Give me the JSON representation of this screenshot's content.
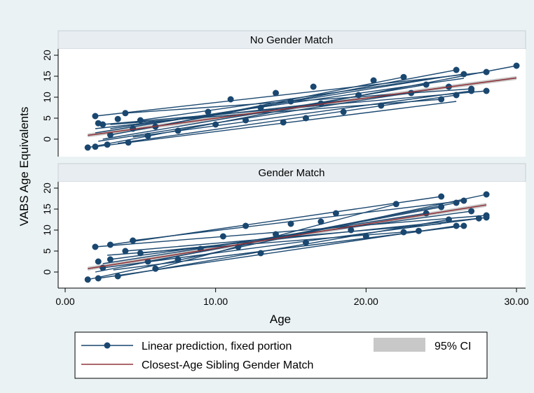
{
  "chart_data": {
    "type": "line",
    "xlabel": "Age",
    "ylabel": "VABS Age Equivalents",
    "xlim": [
      0,
      30
    ],
    "ylim": [
      -2,
      21
    ],
    "xticks": [
      "0.00",
      "10.00",
      "20.00",
      "30.00"
    ],
    "yticks": [
      "0",
      "5",
      "10",
      "15",
      "20"
    ],
    "grid": false,
    "legend_position": "bottom",
    "colors": {
      "prediction": "#1a476f",
      "match_line": "#90353b",
      "ci_band": "#c8c8c8",
      "panel_header": "#e8edf1",
      "plot_background": "#ffffff",
      "outer_background": "#eaf2f3"
    },
    "legend": {
      "prediction_label": "Linear prediction, fixed portion",
      "match_label": "Closest-Age Sibling Gender Match",
      "ci_label": "95% CI"
    },
    "panels": [
      {
        "title": "No Gender Match",
        "fit": {
          "x": [
            1.5,
            30
          ],
          "y": [
            0.9,
            14.6
          ]
        },
        "ci_halfwidth": 0.45,
        "prediction_lines": [
          {
            "x": [
              1.5,
              30.0
            ],
            "y": [
              -2.0,
              17.5
            ]
          },
          {
            "x": [
              2.0,
              28.0
            ],
            "y": [
              5.5,
              16.0
            ]
          },
          {
            "x": [
              2.0,
              26.0
            ],
            "y": [
              -1.8,
              9.0
            ]
          },
          {
            "x": [
              2.5,
              28.0
            ],
            "y": [
              3.5,
              11.5
            ]
          },
          {
            "x": [
              3.0,
              26.0
            ],
            "y": [
              1.0,
              16.5
            ]
          },
          {
            "x": [
              4.0,
              27.0
            ],
            "y": [
              6.2,
              12.0
            ]
          },
          {
            "x": [
              2.2,
              25.5
            ],
            "y": [
              -0.5,
              12.5
            ]
          },
          {
            "x": [
              3.0,
              26.5
            ],
            "y": [
              2.5,
              14.5
            ]
          },
          {
            "x": [
              4.5,
              27.0
            ],
            "y": [
              0.5,
              11.5
            ]
          },
          {
            "x": [
              2.0,
              25.5
            ],
            "y": [
              1.5,
              15.0
            ]
          },
          {
            "x": [
              3.5,
              26.0
            ],
            "y": [
              -1.0,
              10.5
            ]
          },
          {
            "x": [
              5.0,
              26.5
            ],
            "y": [
              4.5,
              15.5
            ]
          },
          {
            "x": [
              2.5,
              24.0
            ],
            "y": [
              0.0,
              13.0
            ]
          },
          {
            "x": [
              6.0,
              22.5
            ],
            "y": [
              3.0,
              14.8
            ]
          },
          {
            "x": [
              3.0,
              25.0
            ],
            "y": [
              3.5,
              9.5
            ]
          },
          {
            "x": [
              2.0,
              23.0
            ],
            "y": [
              2.5,
              11.0
            ]
          }
        ],
        "points": [
          [
            1.5,
            -2.0
          ],
          [
            2.0,
            5.5
          ],
          [
            2.2,
            3.8
          ],
          [
            2.0,
            -1.8
          ],
          [
            2.5,
            3.5
          ],
          [
            3.0,
            1.0
          ],
          [
            2.8,
            -1.3
          ],
          [
            3.5,
            4.8
          ],
          [
            4.0,
            6.2
          ],
          [
            4.2,
            -0.8
          ],
          [
            4.5,
            2.5
          ],
          [
            5.0,
            4.5
          ],
          [
            5.5,
            0.8
          ],
          [
            6.0,
            3.0
          ],
          [
            7.5,
            2.0
          ],
          [
            9.5,
            6.5
          ],
          [
            10.0,
            3.5
          ],
          [
            11.0,
            9.5
          ],
          [
            12.0,
            4.5
          ],
          [
            13.0,
            7.5
          ],
          [
            14.0,
            11.0
          ],
          [
            14.5,
            4.0
          ],
          [
            15.0,
            9.0
          ],
          [
            16.0,
            5.0
          ],
          [
            16.5,
            12.5
          ],
          [
            17.0,
            8.5
          ],
          [
            18.5,
            6.5
          ],
          [
            19.5,
            10.5
          ],
          [
            20.5,
            14.0
          ],
          [
            21.0,
            8.0
          ],
          [
            22.5,
            14.8
          ],
          [
            23.0,
            11.0
          ],
          [
            24.0,
            13.0
          ],
          [
            25.0,
            9.5
          ],
          [
            25.5,
            12.5
          ],
          [
            26.0,
            16.5
          ],
          [
            26.0,
            10.5
          ],
          [
            26.5,
            15.5
          ],
          [
            27.0,
            11.5
          ],
          [
            27.0,
            12.0
          ],
          [
            28.0,
            16.0
          ],
          [
            28.0,
            11.5
          ],
          [
            30.0,
            17.5
          ]
        ]
      },
      {
        "title": "Gender Match",
        "fit": {
          "x": [
            1.5,
            28
          ],
          "y": [
            0.8,
            16.0
          ]
        },
        "ci_halfwidth": 0.45,
        "prediction_lines": [
          {
            "x": [
              1.5,
              28.0
            ],
            "y": [
              -1.8,
              18.5
            ]
          },
          {
            "x": [
              2.0,
              28.0
            ],
            "y": [
              6.0,
              13.5
            ]
          },
          {
            "x": [
              2.2,
              26.0
            ],
            "y": [
              -1.5,
              11.0
            ]
          },
          {
            "x": [
              3.0,
              25.0
            ],
            "y": [
              6.5,
              18.0
            ]
          },
          {
            "x": [
              2.5,
              28.0
            ],
            "y": [
              1.0,
              13.0
            ]
          },
          {
            "x": [
              4.5,
              26.5
            ],
            "y": [
              7.5,
              17.0
            ]
          },
          {
            "x": [
              3.0,
              27.0
            ],
            "y": [
              3.0,
              14.5
            ]
          },
          {
            "x": [
              2.0,
              26.0
            ],
            "y": [
              0.0,
              16.5
            ]
          },
          {
            "x": [
              3.5,
              25.5
            ],
            "y": [
              -1.0,
              12.5
            ]
          },
          {
            "x": [
              5.0,
              27.5
            ],
            "y": [
              4.5,
              12.8
            ]
          },
          {
            "x": [
              2.5,
              24.0
            ],
            "y": [
              2.0,
              14.0
            ]
          },
          {
            "x": [
              4.0,
              25.0
            ],
            "y": [
              5.0,
              11.5
            ]
          },
          {
            "x": [
              6.0,
              22.0
            ],
            "y": [
              0.8,
              16.2
            ]
          },
          {
            "x": [
              2.8,
              23.5
            ],
            "y": [
              4.0,
              9.8
            ]
          },
          {
            "x": [
              3.2,
              26.5
            ],
            "y": [
              0.5,
              11.0
            ]
          },
          {
            "x": [
              5.5,
              25.0
            ],
            "y": [
              2.5,
              15.5
            ]
          }
        ],
        "points": [
          [
            1.5,
            -1.8
          ],
          [
            2.0,
            6.0
          ],
          [
            2.2,
            2.5
          ],
          [
            2.2,
            -1.5
          ],
          [
            2.5,
            1.0
          ],
          [
            3.0,
            6.5
          ],
          [
            3.0,
            3.0
          ],
          [
            3.5,
            -1.0
          ],
          [
            4.0,
            5.0
          ],
          [
            4.5,
            7.5
          ],
          [
            5.0,
            4.5
          ],
          [
            5.5,
            2.5
          ],
          [
            6.0,
            0.8
          ],
          [
            7.5,
            3.0
          ],
          [
            9.0,
            5.5
          ],
          [
            10.5,
            8.5
          ],
          [
            11.5,
            6.0
          ],
          [
            12.0,
            11.0
          ],
          [
            13.0,
            4.5
          ],
          [
            14.0,
            9.0
          ],
          [
            15.0,
            11.5
          ],
          [
            16.0,
            7.0
          ],
          [
            17.0,
            12.0
          ],
          [
            18.0,
            14.0
          ],
          [
            19.0,
            10.0
          ],
          [
            20.0,
            8.5
          ],
          [
            22.0,
            16.2
          ],
          [
            22.5,
            9.5
          ],
          [
            23.5,
            9.8
          ],
          [
            24.0,
            14.0
          ],
          [
            25.0,
            18.0
          ],
          [
            25.0,
            15.5
          ],
          [
            25.5,
            12.5
          ],
          [
            26.0,
            16.5
          ],
          [
            26.0,
            11.0
          ],
          [
            26.5,
            17.0
          ],
          [
            26.5,
            11.0
          ],
          [
            27.0,
            14.5
          ],
          [
            27.5,
            12.8
          ],
          [
            28.0,
            18.5
          ],
          [
            28.0,
            13.5
          ],
          [
            28.0,
            13.0
          ]
        ]
      }
    ]
  }
}
